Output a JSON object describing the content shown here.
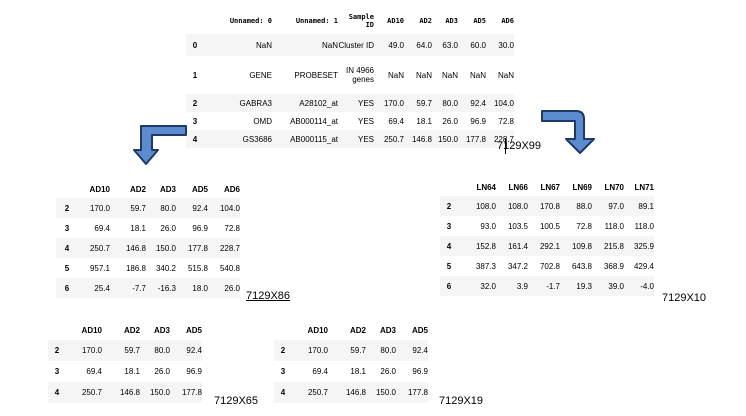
{
  "top_table": {
    "headers": [
      "",
      "Unnamed: 0",
      "Unnamed: 1",
      "Sample ID",
      "AD10",
      "AD2",
      "AD3",
      "AD5",
      "AD6"
    ],
    "rows": [
      [
        "0",
        "NaN",
        "NaN",
        "Cluster ID",
        "49.0",
        "64.0",
        "63.0",
        "60.0",
        "30.0"
      ],
      [
        "1",
        "GENE",
        "PROBESET",
        "IN 4966 genes",
        "NaN",
        "NaN",
        "NaN",
        "NaN",
        "NaN"
      ],
      [
        "2",
        "GABRA3",
        "A28102_at",
        "YES",
        "170.0",
        "59.7",
        "80.0",
        "92.4",
        "104.0"
      ],
      [
        "3",
        "OMD",
        "AB000114_at",
        "YES",
        "69.4",
        "18.1",
        "26.0",
        "96.9",
        "72.8"
      ],
      [
        "4",
        "GS3686",
        "AB000115_at",
        "YES",
        "250.7",
        "146.8",
        "150.0",
        "177.8",
        "228.7"
      ]
    ]
  },
  "shape_main": "7129X99",
  "left_table": {
    "headers": [
      "",
      "AD10",
      "AD2",
      "AD3",
      "AD5",
      "AD6"
    ],
    "rows": [
      [
        "2",
        "170.0",
        "59.7",
        "80.0",
        "92.4",
        "104.0"
      ],
      [
        "3",
        "69.4",
        "18.1",
        "26.0",
        "96.9",
        "72.8"
      ],
      [
        "4",
        "250.7",
        "146.8",
        "150.0",
        "177.8",
        "228.7"
      ],
      [
        "5",
        "957.1",
        "186.8",
        "340.2",
        "515.8",
        "540.8"
      ],
      [
        "6",
        "25.4",
        "-7.7",
        "-16.3",
        "18.0",
        "26.0"
      ]
    ],
    "shape": "7129X86"
  },
  "right_table": {
    "headers": [
      "",
      "LN64",
      "LN66",
      "LN67",
      "LN69",
      "LN70",
      "LN71"
    ],
    "rows": [
      [
        "2",
        "108.0",
        "108.0",
        "170.8",
        "88.0",
        "97.0",
        "89.1"
      ],
      [
        "3",
        "93.0",
        "103.5",
        "100.5",
        "72.8",
        "118.0",
        "118.0"
      ],
      [
        "4",
        "152.8",
        "161.4",
        "292.1",
        "109.8",
        "215.8",
        "325.9"
      ],
      [
        "5",
        "387.3",
        "347.2",
        "702.8",
        "643.8",
        "368.9",
        "429.4"
      ],
      [
        "6",
        "32.0",
        "3.9",
        "-1.7",
        "19.3",
        "39.0",
        "-4.0"
      ]
    ],
    "shape": "7129X10"
  },
  "bottom_left_table": {
    "headers": [
      "",
      "AD10",
      "AD2",
      "AD3",
      "AD5"
    ],
    "rows": [
      [
        "2",
        "170.0",
        "59.7",
        "80.0",
        "92.4"
      ],
      [
        "3",
        "69.4",
        "18.1",
        "26.0",
        "96.9"
      ],
      [
        "4",
        "250.7",
        "146.8",
        "150.0",
        "177.8"
      ]
    ],
    "shape": "7129X65"
  },
  "bottom_right_table": {
    "headers": [
      "",
      "AD10",
      "AD2",
      "AD3",
      "AD5"
    ],
    "rows": [
      [
        "2",
        "170.0",
        "59.7",
        "80.0",
        "92.4"
      ],
      [
        "3",
        "69.4",
        "18.1",
        "26.0",
        "96.9"
      ],
      [
        "4",
        "250.7",
        "146.8",
        "150.0",
        "177.8"
      ]
    ],
    "shape": "7129X19"
  },
  "colors": {
    "arrow_fill": "#5b8ccf",
    "arrow_outline": "#1f3864",
    "stripe": "#f5f5f5"
  }
}
